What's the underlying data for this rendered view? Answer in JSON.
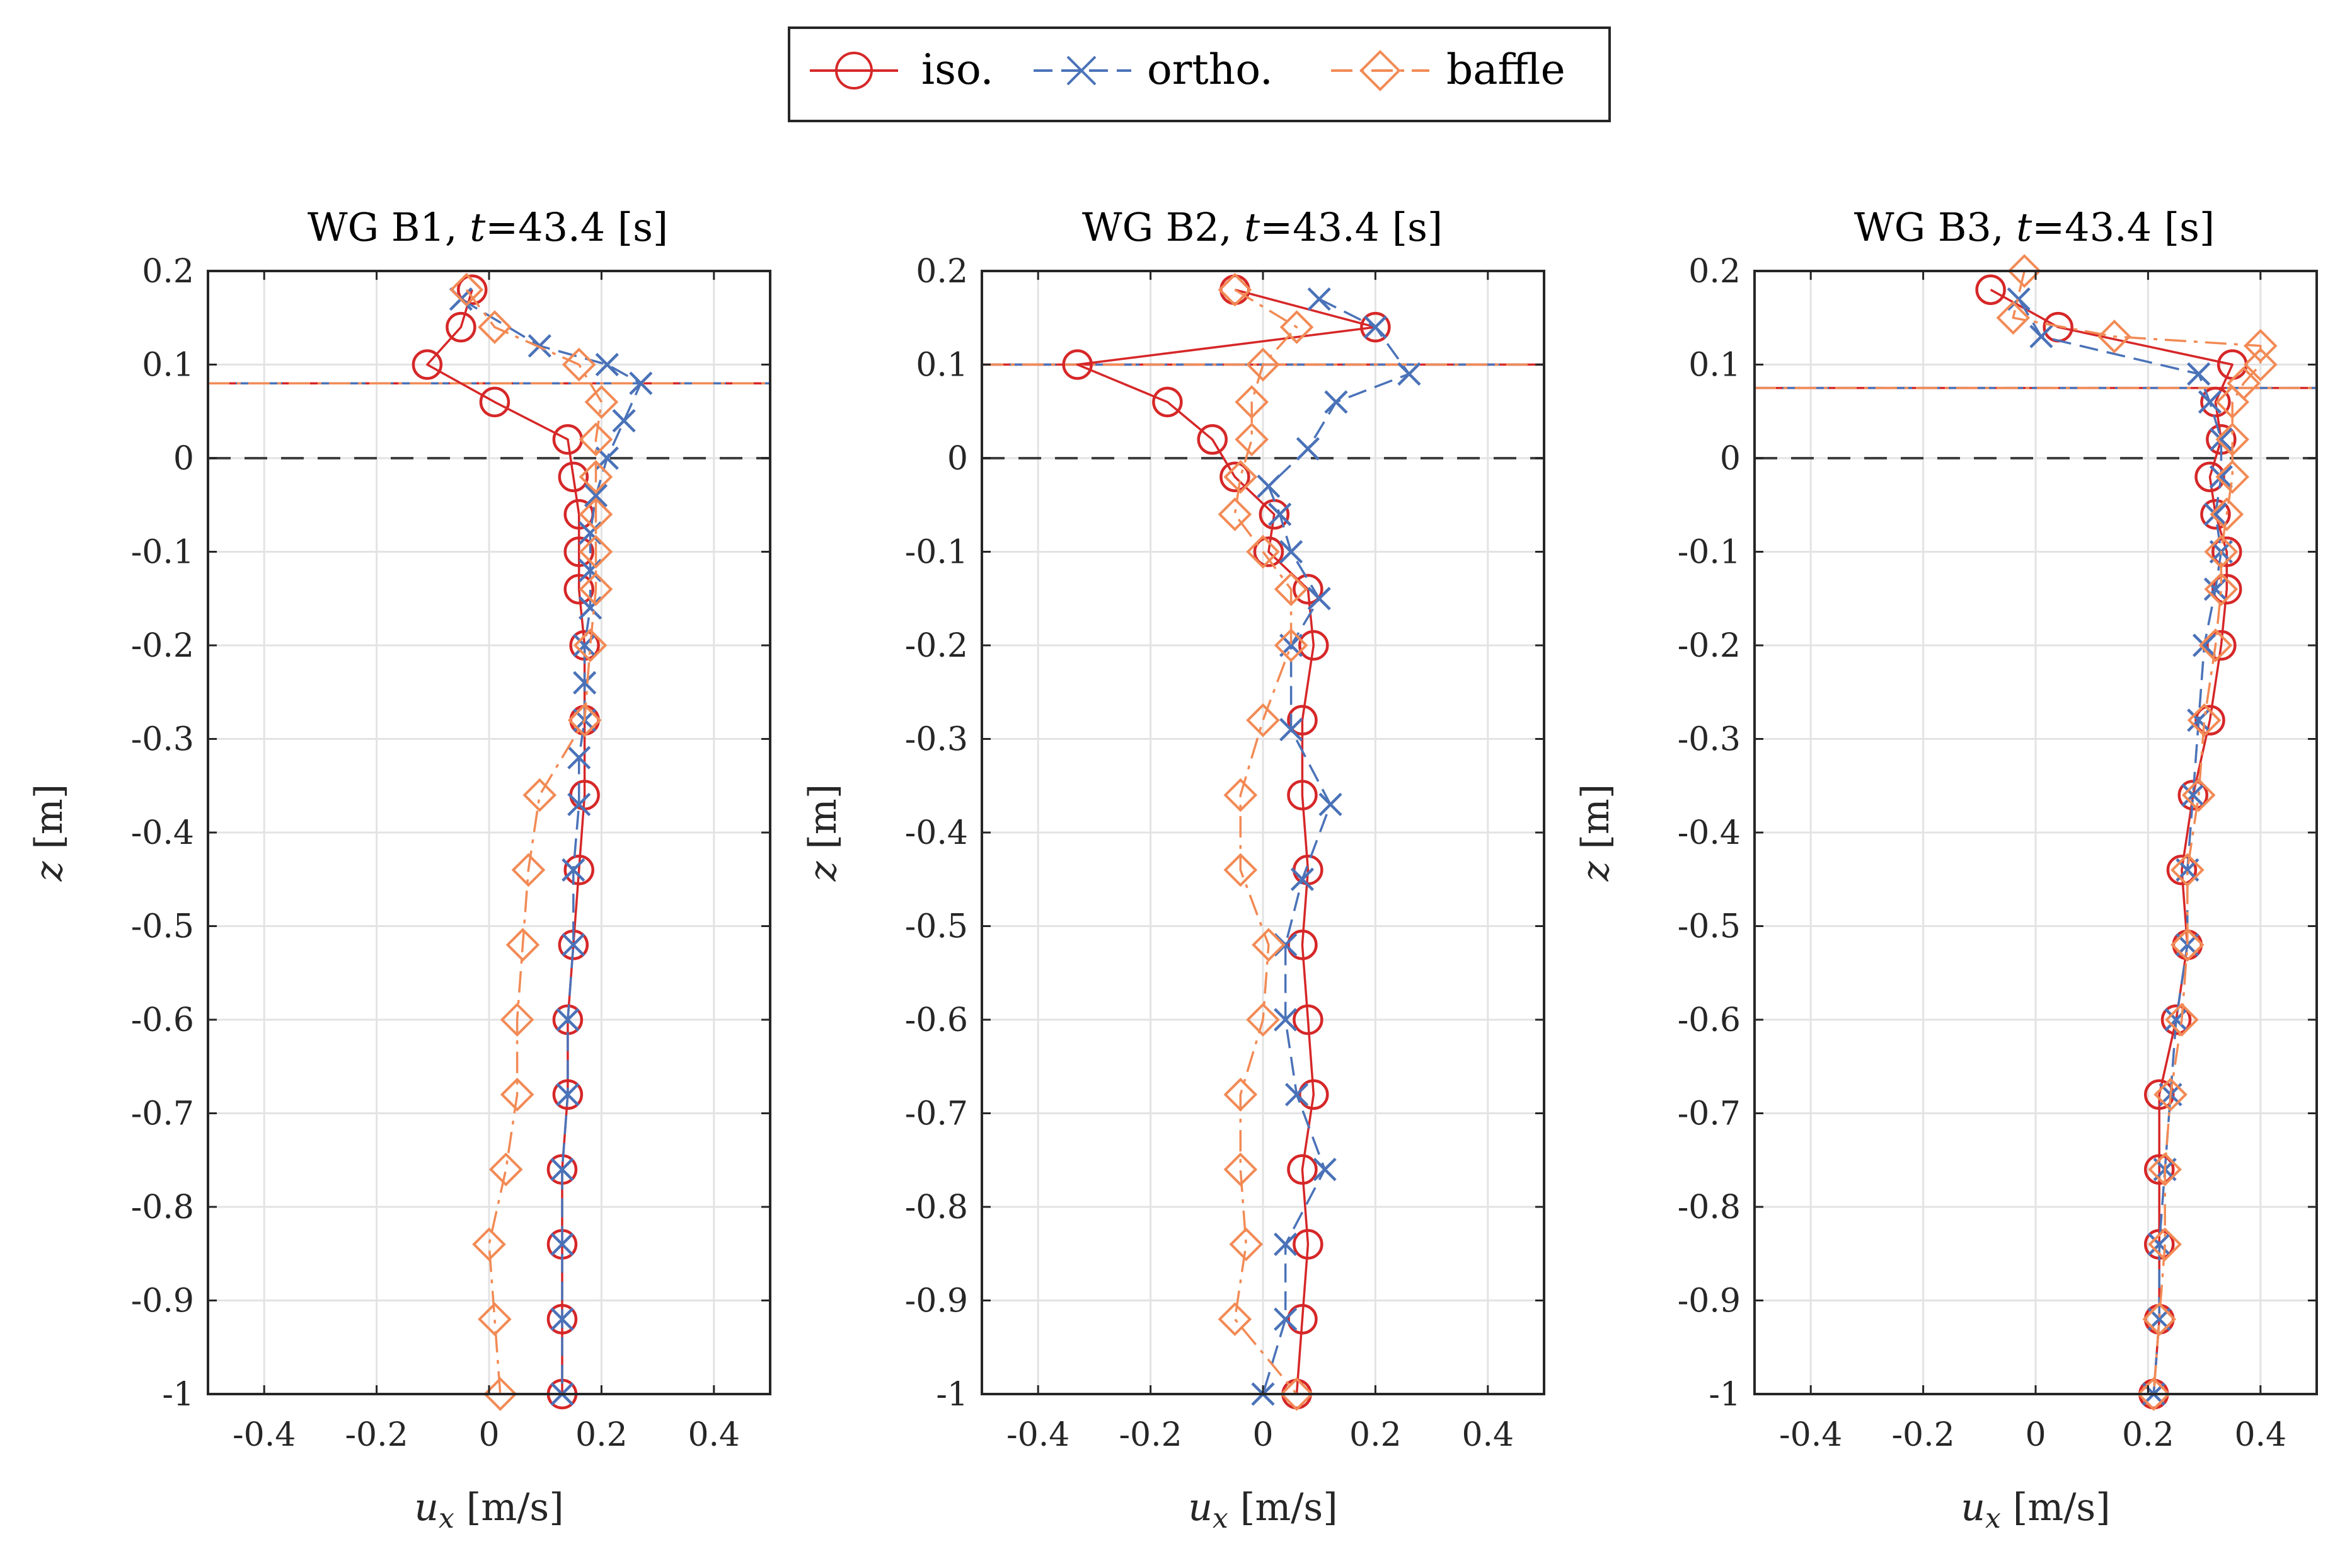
{
  "colors": {
    "iso": "#d62728",
    "ortho": "#4a72b8",
    "baffle": "#f28a55",
    "axis": "#262626",
    "grid": "#e3e3e3"
  },
  "legend": {
    "iso_label": "iso.",
    "ortho_label": "ortho.",
    "baffle_label": "baffle"
  },
  "chart_data": [
    {
      "type": "line",
      "title_prefix": "WG B1, ",
      "title_t": "t",
      "title_suffix": "=43.4 [s]",
      "xlabel_sym": "u",
      "xlabel_sub": "x",
      "xlabel_unit": " [m/s]",
      "ylabel_sym": "z",
      "ylabel_unit": " [m]",
      "xlim": [
        -0.5,
        0.5
      ],
      "ylim": [
        -1,
        0.2
      ],
      "xticks": [
        -0.4,
        -0.2,
        0,
        0.2,
        0.4
      ],
      "xtick_labels": [
        "-0.4",
        "-0.2",
        "0",
        "0.2",
        "0.4"
      ],
      "yticks": [
        0.2,
        0.1,
        0,
        -0.1,
        -0.2,
        -0.3,
        -0.4,
        -0.5,
        -0.6,
        -0.7,
        -0.8,
        -0.9,
        -1
      ],
      "ytick_labels": [
        "0.2",
        "0.1",
        "0",
        "-0.1",
        "-0.2",
        "-0.3",
        "-0.4",
        "-0.5",
        "-0.6",
        "-0.7",
        "-0.8",
        "-0.9",
        "-1"
      ],
      "grid": true,
      "free_surface_z": 0.08,
      "still_water_z": 0,
      "series": [
        {
          "name": "iso.",
          "z": [
            0.18,
            0.14,
            0.1,
            0.06,
            0.02,
            -0.02,
            -0.06,
            -0.1,
            -0.14,
            -0.2,
            -0.28,
            -0.36,
            -0.44,
            -0.52,
            -0.6,
            -0.68,
            -0.76,
            -0.84,
            -0.92,
            -1.0
          ],
          "u": [
            -0.03,
            -0.05,
            -0.11,
            0.01,
            0.14,
            0.15,
            0.16,
            0.16,
            0.16,
            0.17,
            0.17,
            0.17,
            0.16,
            0.15,
            0.14,
            0.14,
            0.13,
            0.13,
            0.13,
            0.13
          ]
        },
        {
          "name": "ortho.",
          "z": [
            0.17,
            0.12,
            0.1,
            0.08,
            0.04,
            0.0,
            -0.04,
            -0.08,
            -0.12,
            -0.16,
            -0.2,
            -0.24,
            -0.28,
            -0.32,
            -0.37,
            -0.44,
            -0.52,
            -0.6,
            -0.68,
            -0.76,
            -0.84,
            -0.92,
            -1.0
          ],
          "u": [
            -0.05,
            0.09,
            0.21,
            0.27,
            0.24,
            0.21,
            0.19,
            0.18,
            0.18,
            0.18,
            0.17,
            0.17,
            0.17,
            0.16,
            0.16,
            0.15,
            0.15,
            0.14,
            0.14,
            0.13,
            0.13,
            0.13,
            0.13
          ]
        },
        {
          "name": "baffle",
          "z": [
            0.18,
            0.14,
            0.1,
            0.06,
            0.02,
            -0.02,
            -0.06,
            -0.1,
            -0.14,
            -0.2,
            -0.28,
            -0.36,
            -0.44,
            -0.52,
            -0.6,
            -0.68,
            -0.76,
            -0.84,
            -0.92,
            -1.0
          ],
          "u": [
            -0.04,
            0.01,
            0.16,
            0.2,
            0.19,
            0.19,
            0.19,
            0.19,
            0.19,
            0.18,
            0.17,
            0.09,
            0.07,
            0.06,
            0.05,
            0.05,
            0.03,
            0.0,
            0.01,
            0.02
          ]
        }
      ]
    },
    {
      "type": "line",
      "title_prefix": "WG B2, ",
      "title_t": "t",
      "title_suffix": "=43.4 [s]",
      "xlabel_sym": "u",
      "xlabel_sub": "x",
      "xlabel_unit": " [m/s]",
      "ylabel_sym": "z",
      "ylabel_unit": " [m]",
      "xlim": [
        -0.5,
        0.5
      ],
      "ylim": [
        -1,
        0.2
      ],
      "xticks": [
        -0.4,
        -0.2,
        0,
        0.2,
        0.4
      ],
      "xtick_labels": [
        "-0.4",
        "-0.2",
        "0",
        "0.2",
        "0.4"
      ],
      "yticks": [
        0.2,
        0.1,
        0,
        -0.1,
        -0.2,
        -0.3,
        -0.4,
        -0.5,
        -0.6,
        -0.7,
        -0.8,
        -0.9,
        -1
      ],
      "ytick_labels": [
        "0.2",
        "0.1",
        "0",
        "-0.1",
        "-0.2",
        "-0.3",
        "-0.4",
        "-0.5",
        "-0.6",
        "-0.7",
        "-0.8",
        "-0.9",
        "-1"
      ],
      "grid": true,
      "free_surface_z": 0.1,
      "still_water_z": 0,
      "series": [
        {
          "name": "iso.",
          "z": [
            0.18,
            0.14,
            0.1,
            0.06,
            0.02,
            -0.02,
            -0.06,
            -0.1,
            -0.14,
            -0.2,
            -0.28,
            -0.36,
            -0.44,
            -0.52,
            -0.6,
            -0.68,
            -0.76,
            -0.84,
            -0.92,
            -1.0
          ],
          "u": [
            -0.05,
            0.2,
            -0.33,
            -0.17,
            -0.09,
            -0.05,
            0.02,
            0.01,
            0.08,
            0.09,
            0.07,
            0.07,
            0.08,
            0.07,
            0.08,
            0.09,
            0.07,
            0.08,
            0.07,
            0.06
          ]
        },
        {
          "name": "ortho.",
          "z": [
            0.17,
            0.14,
            0.09,
            0.06,
            0.01,
            -0.03,
            -0.06,
            -0.1,
            -0.15,
            -0.2,
            -0.29,
            -0.37,
            -0.45,
            -0.52,
            -0.6,
            -0.68,
            -0.76,
            -0.84,
            -0.92,
            -1.0
          ],
          "u": [
            0.1,
            0.2,
            0.26,
            0.13,
            0.08,
            0.01,
            0.03,
            0.05,
            0.1,
            0.05,
            0.05,
            0.12,
            0.07,
            0.04,
            0.04,
            0.06,
            0.11,
            0.04,
            0.04,
            0.0
          ]
        },
        {
          "name": "baffle",
          "z": [
            0.18,
            0.14,
            0.1,
            0.06,
            0.02,
            -0.02,
            -0.06,
            -0.1,
            -0.14,
            -0.2,
            -0.28,
            -0.36,
            -0.44,
            -0.52,
            -0.6,
            -0.68,
            -0.76,
            -0.84,
            -0.92,
            -1.0
          ],
          "u": [
            -0.05,
            0.06,
            0.0,
            -0.02,
            -0.02,
            -0.04,
            -0.05,
            0.0,
            0.05,
            0.05,
            0.0,
            -0.04,
            -0.04,
            0.01,
            0.0,
            -0.04,
            -0.04,
            -0.03,
            -0.05,
            0.06
          ]
        }
      ]
    },
    {
      "type": "line",
      "title_prefix": "WG B3, ",
      "title_t": "t",
      "title_suffix": "=43.4 [s]",
      "xlabel_sym": "u",
      "xlabel_sub": "x",
      "xlabel_unit": " [m/s]",
      "ylabel_sym": "z",
      "ylabel_unit": " [m]",
      "xlim": [
        -0.5,
        0.5
      ],
      "ylim": [
        -1,
        0.2
      ],
      "xticks": [
        -0.4,
        -0.2,
        0,
        0.2,
        0.4
      ],
      "xtick_labels": [
        "-0.4",
        "-0.2",
        "0",
        "0.2",
        "0.4"
      ],
      "yticks": [
        0.2,
        0.1,
        0,
        -0.1,
        -0.2,
        -0.3,
        -0.4,
        -0.5,
        -0.6,
        -0.7,
        -0.8,
        -0.9,
        -1
      ],
      "ytick_labels": [
        "0.2",
        "0.1",
        "0",
        "-0.1",
        "-0.2",
        "-0.3",
        "-0.4",
        "-0.5",
        "-0.6",
        "-0.7",
        "-0.8",
        "-0.9",
        "-1"
      ],
      "grid": true,
      "free_surface_z": 0.075,
      "still_water_z": 0,
      "series": [
        {
          "name": "iso.",
          "z": [
            0.18,
            0.14,
            0.1,
            0.06,
            0.02,
            -0.02,
            -0.06,
            -0.1,
            -0.14,
            -0.2,
            -0.28,
            -0.36,
            -0.44,
            -0.52,
            -0.6,
            -0.68,
            -0.76,
            -0.84,
            -0.92,
            -1.0
          ],
          "u": [
            -0.08,
            0.04,
            0.35,
            0.32,
            0.33,
            0.31,
            0.32,
            0.34,
            0.34,
            0.33,
            0.31,
            0.28,
            0.26,
            0.27,
            0.25,
            0.22,
            0.22,
            0.22,
            0.22,
            0.21
          ]
        },
        {
          "name": "ortho.",
          "z": [
            0.17,
            0.13,
            0.09,
            0.06,
            0.02,
            -0.02,
            -0.06,
            -0.1,
            -0.14,
            -0.2,
            -0.28,
            -0.36,
            -0.44,
            -0.52,
            -0.6,
            -0.68,
            -0.76,
            -0.84,
            -0.92,
            -1.0
          ],
          "u": [
            -0.03,
            0.01,
            0.29,
            0.31,
            0.33,
            0.33,
            0.32,
            0.33,
            0.32,
            0.3,
            0.29,
            0.28,
            0.27,
            0.27,
            0.25,
            0.24,
            0.23,
            0.22,
            0.22,
            0.21
          ]
        },
        {
          "name": "baffle",
          "z": [
            0.2,
            0.15,
            0.13,
            0.12,
            0.1,
            0.08,
            0.06,
            0.02,
            -0.02,
            -0.06,
            -0.1,
            -0.14,
            -0.2,
            -0.28,
            -0.36,
            -0.44,
            -0.52,
            -0.6,
            -0.68,
            -0.76,
            -0.84,
            -0.92,
            -1.0
          ],
          "u": [
            -0.02,
            -0.04,
            0.14,
            0.4,
            0.4,
            0.37,
            0.35,
            0.35,
            0.35,
            0.34,
            0.33,
            0.33,
            0.32,
            0.3,
            0.29,
            0.27,
            0.27,
            0.26,
            0.24,
            0.23,
            0.23,
            0.22,
            0.21
          ]
        }
      ]
    }
  ]
}
